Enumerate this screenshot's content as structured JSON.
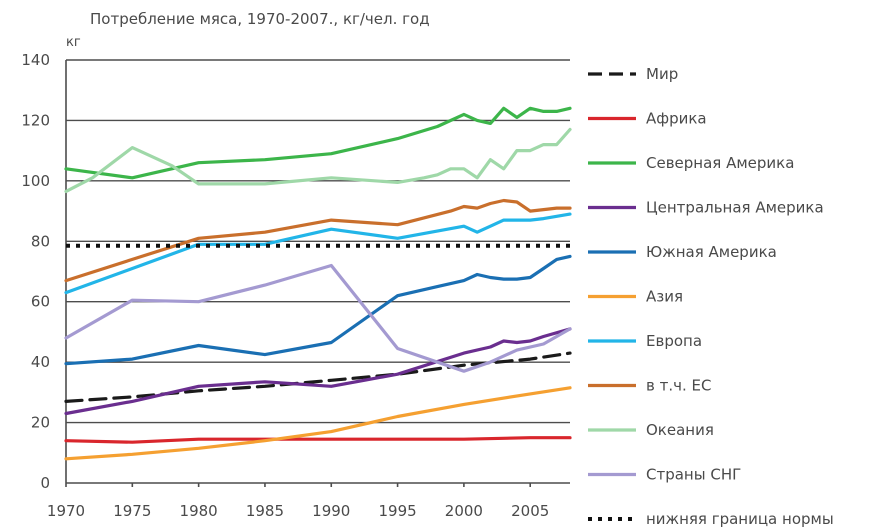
{
  "chart_data": {
    "type": "line",
    "title": "Потребление мяса, 1970-2007., кг/чел. год",
    "ylabel": "кг",
    "xlabel": "",
    "ylim": [
      0,
      140
    ],
    "xlim": [
      1970,
      2008
    ],
    "yticks": [
      0,
      20,
      40,
      60,
      80,
      100,
      120,
      140
    ],
    "xticks": [
      1970,
      1975,
      1980,
      1985,
      1990,
      1995,
      2000,
      2005
    ],
    "grid": "horizontal",
    "legend_position": "right",
    "series": [
      {
        "name": "Мир",
        "color": "#1a1a1a",
        "style": "dashed",
        "points": [
          [
            1970,
            27
          ],
          [
            1975,
            28.5
          ],
          [
            1980,
            30.5
          ],
          [
            1985,
            32
          ],
          [
            1990,
            34
          ],
          [
            1995,
            36
          ],
          [
            2000,
            39
          ],
          [
            2005,
            41
          ],
          [
            2008,
            43
          ]
        ]
      },
      {
        "name": "Африка",
        "color": "#d9262c",
        "style": "solid",
        "points": [
          [
            1970,
            14
          ],
          [
            1975,
            13.5
          ],
          [
            1980,
            14.5
          ],
          [
            1985,
            14.5
          ],
          [
            1990,
            14.5
          ],
          [
            1995,
            14.5
          ],
          [
            2000,
            14.5
          ],
          [
            2005,
            15
          ],
          [
            2008,
            15
          ]
        ]
      },
      {
        "name": "Северная Америка",
        "color": "#3cb54a",
        "style": "solid",
        "points": [
          [
            1970,
            104
          ],
          [
            1975,
            101
          ],
          [
            1980,
            106
          ],
          [
            1985,
            107
          ],
          [
            1990,
            109
          ],
          [
            1995,
            114
          ],
          [
            1998,
            118
          ],
          [
            2000,
            122
          ],
          [
            2001,
            120
          ],
          [
            2002,
            119
          ],
          [
            2003,
            124
          ],
          [
            2004,
            121
          ],
          [
            2005,
            124
          ],
          [
            2006,
            123
          ],
          [
            2007,
            123
          ],
          [
            2008,
            124
          ]
        ]
      },
      {
        "name": "Центральная Америка",
        "color": "#6a2e8f",
        "style": "solid",
        "points": [
          [
            1970,
            23
          ],
          [
            1975,
            27
          ],
          [
            1980,
            32
          ],
          [
            1985,
            33.5
          ],
          [
            1990,
            32
          ],
          [
            1995,
            36
          ],
          [
            2000,
            43
          ],
          [
            2002,
            45
          ],
          [
            2003,
            47
          ],
          [
            2004,
            46.5
          ],
          [
            2005,
            47
          ],
          [
            2006,
            48.5
          ],
          [
            2008,
            51
          ]
        ]
      },
      {
        "name": "Южная Америка",
        "color": "#1a6fb3",
        "style": "solid",
        "points": [
          [
            1970,
            39.5
          ],
          [
            1975,
            41
          ],
          [
            1980,
            45.5
          ],
          [
            1985,
            42.5
          ],
          [
            1990,
            46.5
          ],
          [
            1995,
            62
          ],
          [
            1998,
            65
          ],
          [
            2000,
            67
          ],
          [
            2001,
            69
          ],
          [
            2002,
            68
          ],
          [
            2003,
            67.5
          ],
          [
            2004,
            67.5
          ],
          [
            2005,
            68
          ],
          [
            2006,
            71
          ],
          [
            2007,
            74
          ],
          [
            2008,
            75
          ]
        ]
      },
      {
        "name": "Азия",
        "color": "#f5a031",
        "style": "solid",
        "points": [
          [
            1970,
            8
          ],
          [
            1975,
            9.5
          ],
          [
            1980,
            11.5
          ],
          [
            1985,
            14
          ],
          [
            1990,
            17
          ],
          [
            1995,
            22
          ],
          [
            2000,
            26
          ],
          [
            2005,
            29.5
          ],
          [
            2008,
            31.5
          ]
        ]
      },
      {
        "name": "Европа",
        "color": "#22b5e8",
        "style": "solid",
        "points": [
          [
            1970,
            63
          ],
          [
            1975,
            71
          ],
          [
            1980,
            79
          ],
          [
            1985,
            79
          ],
          [
            1990,
            84
          ],
          [
            1995,
            81
          ],
          [
            2000,
            85
          ],
          [
            2001,
            83
          ],
          [
            2002,
            85
          ],
          [
            2003,
            87
          ],
          [
            2005,
            87
          ],
          [
            2006,
            87.5
          ],
          [
            2008,
            89
          ]
        ]
      },
      {
        "name": "в т.ч. ЕС",
        "color": "#c96f2c",
        "style": "solid",
        "points": [
          [
            1970,
            67
          ],
          [
            1975,
            74
          ],
          [
            1980,
            81
          ],
          [
            1985,
            83
          ],
          [
            1990,
            87
          ],
          [
            1995,
            85.5
          ],
          [
            1999,
            90
          ],
          [
            2000,
            91.5
          ],
          [
            2001,
            91
          ],
          [
            2002,
            92.5
          ],
          [
            2003,
            93.5
          ],
          [
            2004,
            93
          ],
          [
            2005,
            90
          ],
          [
            2006,
            90.5
          ],
          [
            2007,
            91
          ],
          [
            2008,
            91
          ]
        ]
      },
      {
        "name": "Океания",
        "color": "#9fd8a8",
        "style": "solid",
        "points": [
          [
            1970,
            96.5
          ],
          [
            1972,
            101
          ],
          [
            1975,
            111
          ],
          [
            1978,
            105
          ],
          [
            1980,
            99
          ],
          [
            1983,
            99
          ],
          [
            1985,
            99
          ],
          [
            1990,
            101
          ],
          [
            1995,
            99.5
          ],
          [
            1997,
            101
          ],
          [
            1998,
            102
          ],
          [
            1999,
            104
          ],
          [
            2000,
            104
          ],
          [
            2001,
            101
          ],
          [
            2002,
            107
          ],
          [
            2003,
            104
          ],
          [
            2004,
            110
          ],
          [
            2005,
            110
          ],
          [
            2006,
            112
          ],
          [
            2007,
            112
          ],
          [
            2008,
            117
          ]
        ]
      },
      {
        "name": "Страны СНГ",
        "color": "#a49ad1",
        "style": "solid",
        "points": [
          [
            1970,
            48
          ],
          [
            1975,
            60.5
          ],
          [
            1980,
            60
          ],
          [
            1985,
            65.5
          ],
          [
            1990,
            72
          ],
          [
            1995,
            44.5
          ],
          [
            2000,
            37
          ],
          [
            2002,
            40
          ],
          [
            2004,
            44
          ],
          [
            2006,
            46
          ],
          [
            2008,
            51
          ]
        ]
      },
      {
        "name": "нижняя граница нормы",
        "color": "#111111",
        "style": "dotted",
        "points": [
          [
            1970,
            78.5
          ],
          [
            2008,
            78.5
          ]
        ]
      }
    ]
  }
}
